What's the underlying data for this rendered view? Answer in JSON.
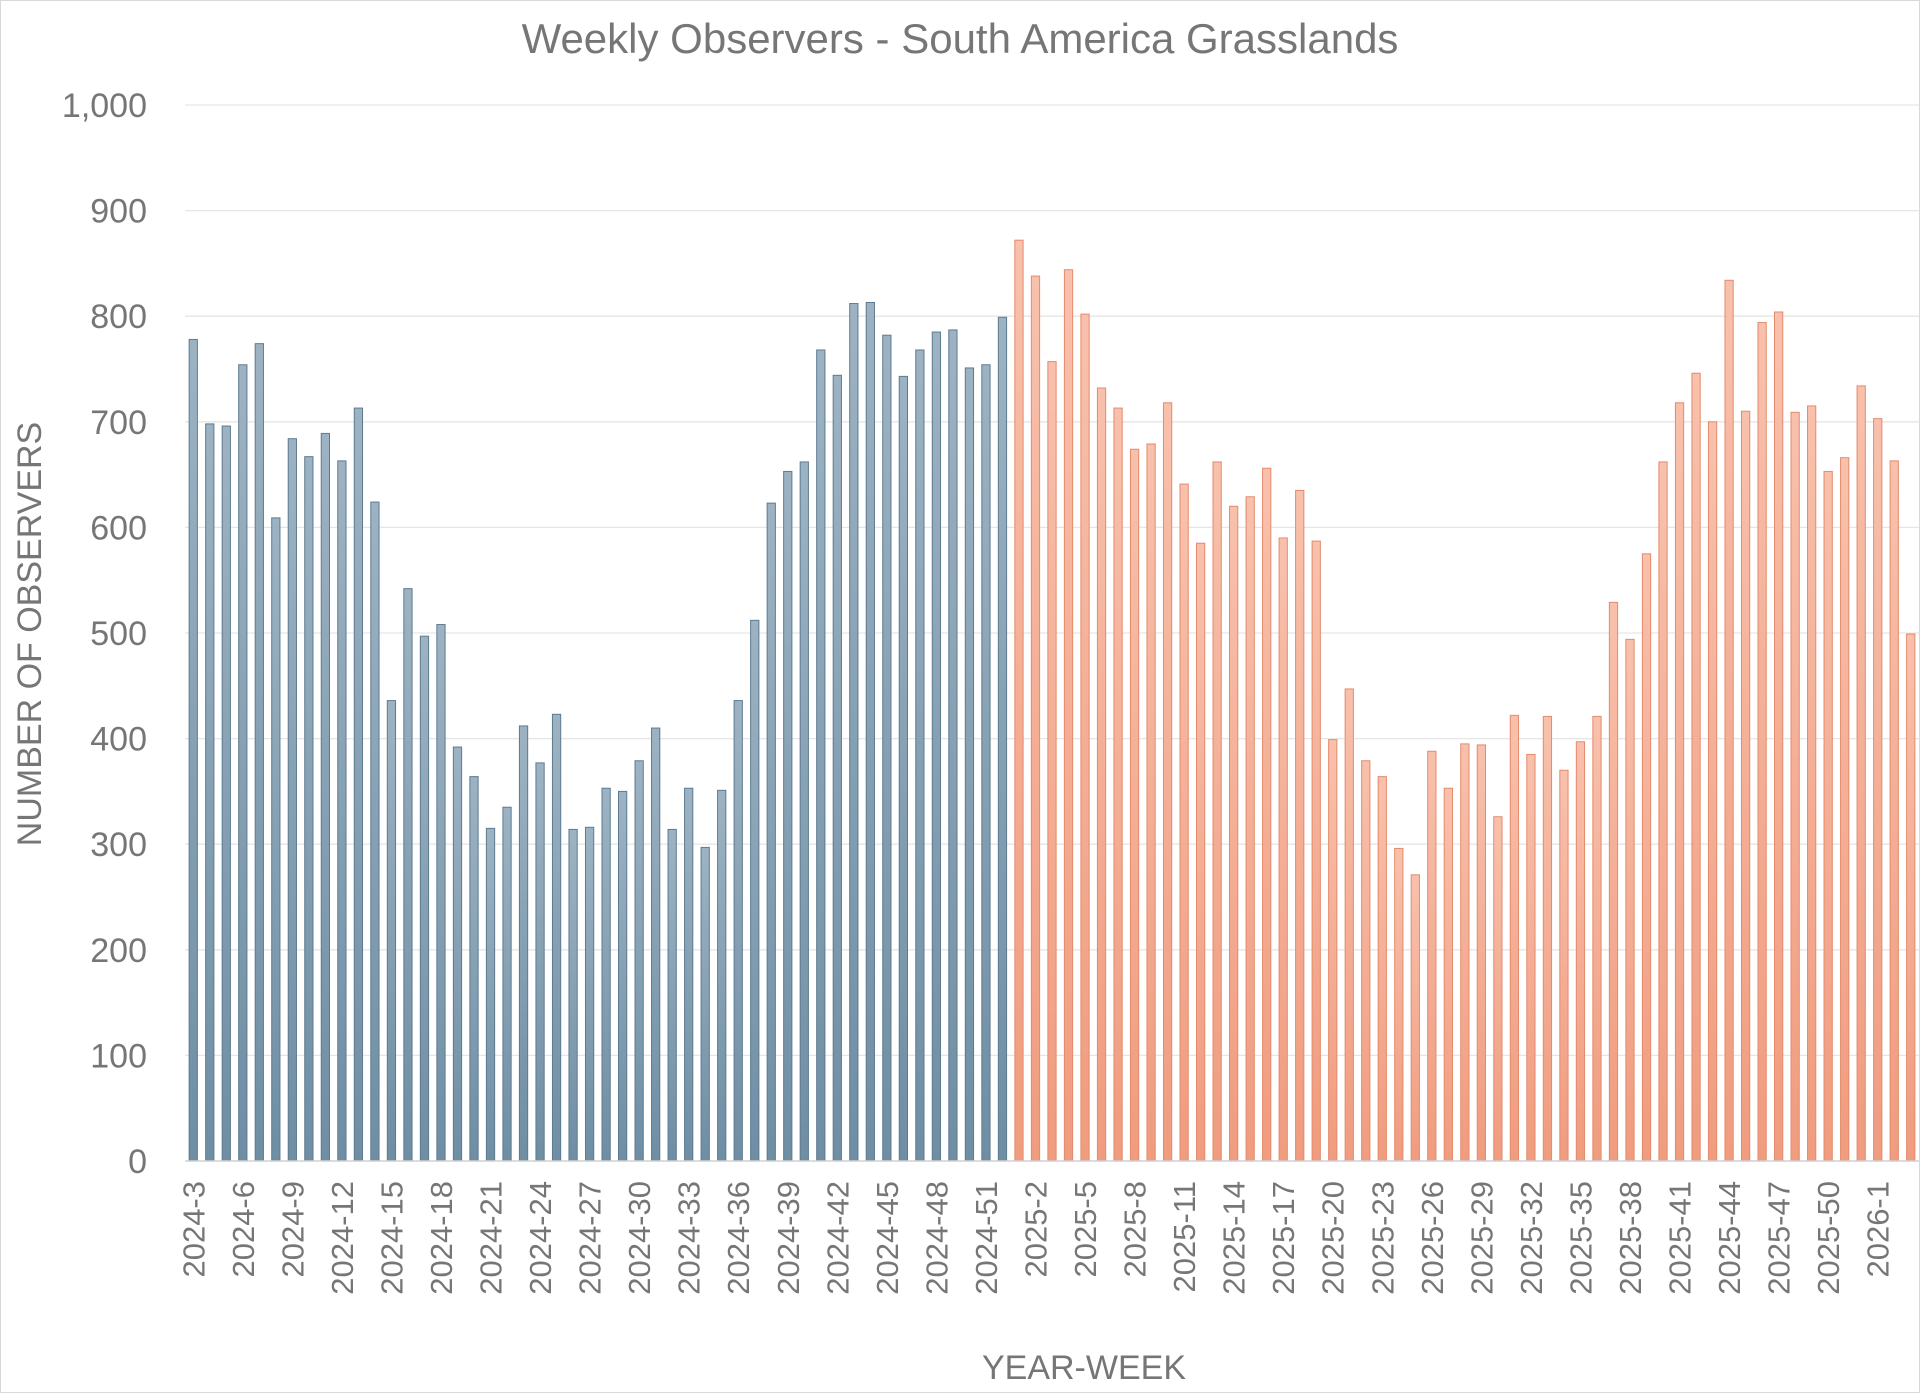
{
  "chart_data": {
    "type": "bar",
    "title": "Weekly Observers - South America Grasslands",
    "xlabel": "YEAR-WEEK",
    "ylabel": "NUMBER OF OBSERVERS",
    "ylim": [
      0,
      1000
    ],
    "yticks": [
      0,
      100,
      200,
      300,
      400,
      500,
      600,
      700,
      800,
      900,
      1000
    ],
    "ytick_labels": [
      "0",
      "100",
      "200",
      "300",
      "400",
      "500",
      "600",
      "700",
      "800",
      "900",
      "1,000"
    ],
    "grid": true,
    "legend": "none",
    "categories": [
      "2024-3",
      "2024-4",
      "2024-5",
      "2024-6",
      "2024-7",
      "2024-8",
      "2024-9",
      "2024-10",
      "2024-11",
      "2024-12",
      "2024-13",
      "2024-14",
      "2024-15",
      "2024-16",
      "2024-17",
      "2024-18",
      "2024-19",
      "2024-20",
      "2024-21",
      "2024-22",
      "2024-23",
      "2024-24",
      "2024-25",
      "2024-26",
      "2024-27",
      "2024-28",
      "2024-29",
      "2024-30",
      "2024-31",
      "2024-32",
      "2024-33",
      "2024-34",
      "2024-35",
      "2024-36",
      "2024-37",
      "2024-38",
      "2024-39",
      "2024-40",
      "2024-41",
      "2024-42",
      "2024-43",
      "2024-44",
      "2024-45",
      "2024-46",
      "2024-47",
      "2024-48",
      "2024-49",
      "2024-50",
      "2024-51",
      "2024-52",
      "2025-1",
      "2025-2",
      "2025-3",
      "2025-4",
      "2025-5",
      "2025-6",
      "2025-7",
      "2025-8",
      "2025-9",
      "2025-10",
      "2025-11",
      "2025-12",
      "2025-13",
      "2025-14",
      "2025-15",
      "2025-16",
      "2025-17",
      "2025-18",
      "2025-19",
      "2025-20",
      "2025-21",
      "2025-22",
      "2025-23",
      "2025-24",
      "2025-25",
      "2025-26",
      "2025-27",
      "2025-28",
      "2025-29",
      "2025-30",
      "2025-31",
      "2025-32",
      "2025-33",
      "2025-34",
      "2025-35",
      "2025-36",
      "2025-37",
      "2025-38",
      "2025-39",
      "2025-40",
      "2025-41",
      "2025-42",
      "2025-43",
      "2025-44",
      "2025-45",
      "2025-46",
      "2025-47",
      "2025-48",
      "2025-49",
      "2025-50",
      "2025-51",
      "2025-52",
      "2026-1",
      "2026-2",
      "2026-3"
    ],
    "shown_tick_labels": [
      "2024-3",
      "2024-6",
      "2024-9",
      "2024-12",
      "2024-15",
      "2024-18",
      "2024-21",
      "2024-24",
      "2024-27",
      "2024-30",
      "2024-33",
      "2024-36",
      "2024-39",
      "2024-42",
      "2024-45",
      "2024-48",
      "2024-51",
      "2025-2",
      "2025-5",
      "2025-8",
      "2025-11",
      "2025-14",
      "2025-17",
      "2025-20",
      "2025-23",
      "2025-26",
      "2025-29",
      "2025-32",
      "2025-35",
      "2025-38",
      "2025-41",
      "2025-44",
      "2025-47",
      "2025-50",
      "2026-1"
    ],
    "values": [
      778,
      698,
      696,
      754,
      774,
      609,
      684,
      667,
      689,
      663,
      713,
      624,
      436,
      542,
      497,
      508,
      392,
      364,
      315,
      335,
      412,
      377,
      423,
      314,
      316,
      353,
      350,
      379,
      410,
      314,
      353,
      297,
      351,
      436,
      512,
      623,
      653,
      662,
      768,
      744,
      812,
      813,
      782,
      743,
      768,
      785,
      787,
      751,
      754,
      799,
      872,
      838,
      757,
      844,
      802,
      732,
      713,
      674,
      679,
      718,
      641,
      585,
      662,
      620,
      629,
      656,
      590,
      635,
      587,
      399,
      447,
      379,
      364,
      296,
      271,
      388,
      353,
      395,
      394,
      326,
      422,
      385,
      421,
      370,
      397,
      421,
      529,
      494,
      575,
      662,
      718,
      746,
      700,
      834,
      710,
      794,
      804,
      709,
      715,
      653,
      666,
      734,
      703,
      663,
      499
    ],
    "series_colors": {
      "2024": {
        "top": "#9db3c3",
        "bottom": "#6f8ea4",
        "stroke": "#5d7b90"
      },
      "2025": {
        "top": "#f8c1ac",
        "bottom": "#f09c7f",
        "stroke": "#e58a6c"
      }
    }
  }
}
